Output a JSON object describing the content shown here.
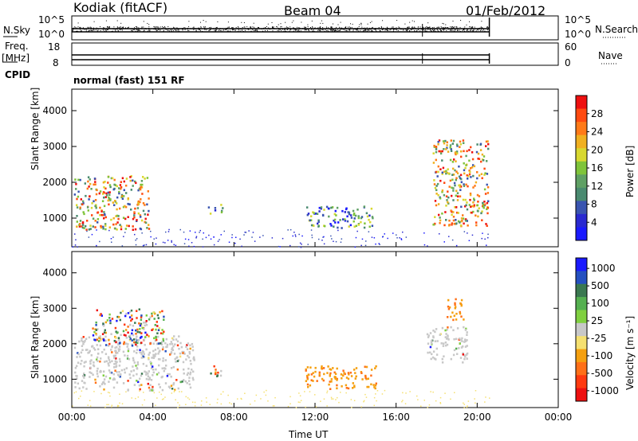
{
  "header": {
    "station": "Kodiak (fitACF)",
    "beam": "Beam 04",
    "date": "01/Feb/2012"
  },
  "top_panels": {
    "nsky": {
      "label": "N.Sky",
      "tick_hi": "10^5",
      "tick_lo": "10^0",
      "right_hi": "10^5",
      "right_lo": "10^0",
      "right_label": "N.Search"
    },
    "freq": {
      "label_line1": "Freq.",
      "label_line2": "[MHz]",
      "tick_hi": "18",
      "tick_lo": "8",
      "right_hi": "60",
      "right_lo": "0",
      "right_label": "Nave"
    },
    "cpid": {
      "label": "CPID",
      "mode": "normal (fast) 151 RF"
    }
  },
  "chart_data": [
    {
      "type": "heatmap",
      "ylabel": "Slant Range [km]",
      "y_ticks": [
        "1000",
        "2000",
        "3000",
        "4000"
      ],
      "ylim": [
        200,
        4600
      ],
      "colorbar": {
        "label": "Power [dB]",
        "ticks": [
          "4",
          "8",
          "12",
          "16",
          "20",
          "24",
          "28"
        ],
        "range": [
          0,
          30
        ]
      },
      "regions": [
        {
          "t": [
            0.1,
            3.8
          ],
          "r": [
            700,
            2200
          ],
          "level": "high"
        },
        {
          "t": [
            6.7,
            7.4
          ],
          "r": [
            1150,
            1400
          ],
          "level": "med"
        },
        {
          "t": [
            11.5,
            15.0
          ],
          "r": [
            750,
            1350
          ],
          "level": "med"
        },
        {
          "t": [
            17.8,
            20.5
          ],
          "r": [
            800,
            3200
          ],
          "level": "high"
        }
      ]
    },
    {
      "type": "heatmap",
      "ylabel": "Slant Range [km]",
      "y_ticks": [
        "1000",
        "2000",
        "3000",
        "4000"
      ],
      "ylim": [
        200,
        4600
      ],
      "colorbar": {
        "label": "Velocity [m s⁻¹]",
        "ticks": [
          "1000",
          "500",
          "100",
          "25",
          "-25",
          "-100",
          "-500",
          "-1000"
        ]
      },
      "regions": [
        {
          "t": [
            0.1,
            6.0
          ],
          "r": [
            700,
            2300
          ],
          "vel": "ground"
        },
        {
          "t": [
            1.0,
            4.5
          ],
          "r": [
            2000,
            3000
          ],
          "vel": "mixed"
        },
        {
          "t": [
            6.7,
            7.4
          ],
          "r": [
            1100,
            1450
          ],
          "vel": "mixed"
        },
        {
          "t": [
            11.5,
            15.0
          ],
          "r": [
            750,
            1400
          ],
          "vel": "away"
        },
        {
          "t": [
            17.5,
            19.5
          ],
          "r": [
            1500,
            2500
          ],
          "vel": "ground"
        },
        {
          "t": [
            18.4,
            19.3
          ],
          "r": [
            2700,
            3300
          ],
          "vel": "away"
        }
      ]
    }
  ],
  "x_axis": {
    "ticks": [
      "00:00",
      "04:00",
      "08:00",
      "12:00",
      "16:00",
      "20:00",
      "00:00"
    ],
    "label": "Time UT",
    "range_hours": [
      0,
      24
    ]
  },
  "colors": {
    "power": [
      "#1a1aff",
      "#2a2ad0",
      "#3a55b0",
      "#4a8a70",
      "#5fa064",
      "#7fc43a",
      "#d8d830",
      "#f0b020",
      "#ff7a18",
      "#ff4a10",
      "#ee1010"
    ],
    "velocity": [
      "#1a1aff",
      "#2550c0",
      "#3a7850",
      "#55b050",
      "#80d040",
      "#c8c8c8",
      "#f5e070",
      "#f5a010",
      "#ff7018",
      "#ff3a10",
      "#ee1010"
    ]
  }
}
